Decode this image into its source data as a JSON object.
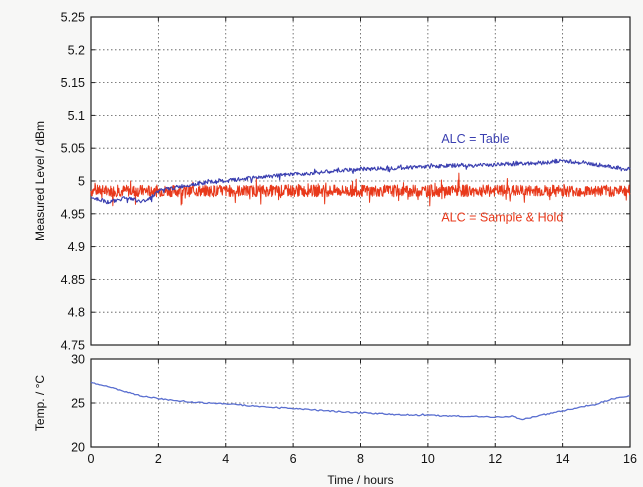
{
  "chart_data": [
    {
      "type": "line",
      "title": "",
      "xlabel": "",
      "ylabel": "Measured Level / dBm",
      "xlim": [
        0,
        16
      ],
      "ylim": [
        4.75,
        5.25
      ],
      "grid": true,
      "x_ticks": [
        "0",
        "2",
        "4",
        "6",
        "8",
        "10",
        "12",
        "14",
        "16"
      ],
      "y_ticks": [
        "4.75",
        "4.8",
        "4.85",
        "4.9",
        "4.95",
        "5",
        "5.05",
        "5.1",
        "5.15",
        "5.2",
        "5.25"
      ],
      "series": [
        {
          "name": "ALC = Table",
          "color": "#3a3fb0",
          "x": [
            0,
            0.25,
            0.5,
            0.75,
            1,
            1.25,
            1.5,
            1.75,
            2,
            2.5,
            3,
            3.5,
            4,
            4.5,
            5,
            5.5,
            6,
            6.5,
            7,
            7.5,
            8,
            8.5,
            9,
            9.5,
            10,
            10.5,
            11,
            11.5,
            12,
            12.5,
            13,
            13.5,
            14,
            14.5,
            15,
            15.5,
            16
          ],
          "y": [
            4.975,
            4.972,
            4.968,
            4.97,
            4.975,
            4.972,
            4.968,
            4.974,
            4.985,
            4.99,
            4.995,
            4.998,
            5.0,
            5.003,
            5.006,
            5.008,
            5.01,
            5.012,
            5.014,
            5.016,
            5.018,
            5.019,
            5.02,
            5.021,
            5.022,
            5.023,
            5.024,
            5.024,
            5.025,
            5.026,
            5.027,
            5.028,
            5.031,
            5.028,
            5.025,
            5.021,
            5.018
          ]
        },
        {
          "name": "ALC = Sample & Hold",
          "color": "#e8391b",
          "x": [
            0,
            16
          ],
          "y": [
            4.985,
            4.985
          ]
        }
      ],
      "annotations": [
        "ALC = Table",
        "ALC = Sample & Hold"
      ]
    },
    {
      "type": "line",
      "title": "",
      "xlabel": "Time / hours",
      "ylabel": "Temp. / °C",
      "xlim": [
        0,
        16
      ],
      "ylim": [
        20,
        30
      ],
      "grid": true,
      "x_ticks": [
        "0",
        "2",
        "4",
        "6",
        "8",
        "10",
        "12",
        "14",
        "16"
      ],
      "y_ticks": [
        "20",
        "25",
        "30"
      ],
      "series": [
        {
          "color": "#5a6fd0",
          "x": [
            0,
            0.5,
            1,
            1.5,
            2,
            3,
            4,
            5,
            6,
            7,
            8,
            9,
            10,
            11,
            12,
            12.5,
            12.8,
            13,
            13.5,
            14,
            14.5,
            15,
            15.5,
            16
          ],
          "y": [
            27.3,
            26.9,
            26.3,
            25.8,
            25.5,
            25.1,
            24.9,
            24.6,
            24.4,
            24.1,
            23.9,
            23.7,
            23.6,
            23.5,
            23.4,
            23.5,
            23.1,
            23.3,
            23.7,
            24.1,
            24.5,
            24.9,
            25.5,
            25.8
          ]
        }
      ]
    }
  ]
}
